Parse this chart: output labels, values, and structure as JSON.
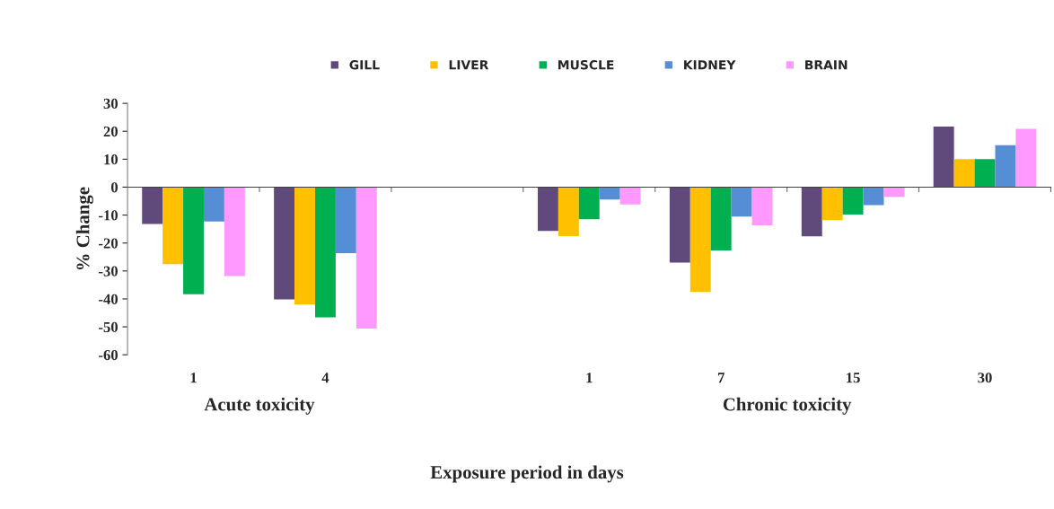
{
  "chart_data": {
    "type": "bar",
    "categories": [
      "1",
      "4",
      null,
      "1",
      "7",
      "15",
      "30"
    ],
    "xlabel": "Exposure period in days",
    "ylabel": "% Change",
    "annotations": [
      "Acute toxicity",
      "Chronic toxicity"
    ],
    "series": [
      {
        "name": "GILL",
        "color": "#604a7b",
        "values": [
          -13.2,
          -40.2,
          null,
          -15.7,
          -27,
          -17.6,
          21.7
        ]
      },
      {
        "name": "LIVER",
        "color": "#ffc000",
        "values": [
          -27.6,
          -42,
          null,
          -17.5,
          -37.5,
          -11.8,
          10
        ]
      },
      {
        "name": "MUSCLE",
        "color": "#00b050",
        "values": [
          -38.3,
          -46.6,
          null,
          -11.5,
          -22.7,
          -9.8,
          10
        ]
      },
      {
        "name": "KIDNEY",
        "color": "#558ed5",
        "values": [
          -12.3,
          -23.6,
          null,
          -4.4,
          -10.5,
          -6.4,
          15
        ]
      },
      {
        "name": "BRAIN",
        "color": "#ff99ff",
        "values": [
          -31.8,
          -50.6,
          null,
          -6.2,
          -13.7,
          -3.5,
          20.9
        ]
      }
    ],
    "ylim": [
      -60,
      30
    ],
    "yticks": [
      -60,
      -50,
      -40,
      -30,
      -20,
      -10,
      0,
      10,
      20,
      30
    ],
    "legend": "top"
  }
}
